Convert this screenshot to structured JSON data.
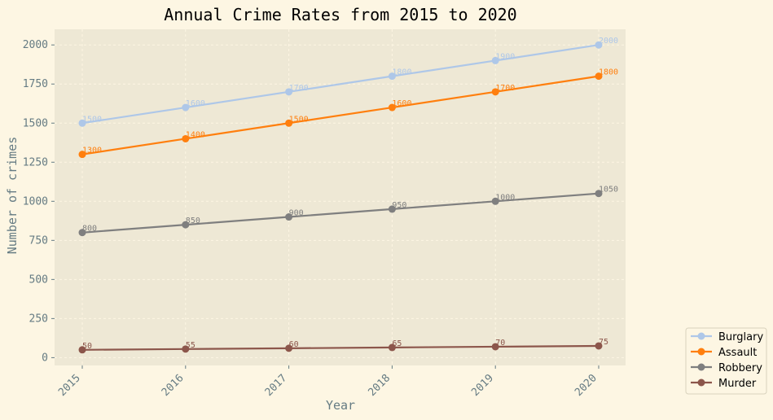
{
  "chart_data": {
    "type": "line",
    "title": "Annual Crime Rates from 2015 to 2020",
    "xlabel": "Year",
    "ylabel": "Number of crimes",
    "categories": [
      "2015",
      "2016",
      "2017",
      "2018",
      "2019",
      "2020"
    ],
    "x": [
      2015,
      2016,
      2017,
      2018,
      2019,
      2020
    ],
    "ylim": [
      -50,
      2100
    ],
    "yticks": [
      0,
      250,
      500,
      750,
      1000,
      1250,
      1500,
      1750,
      2000
    ],
    "ytick_labels": [
      "0",
      "250",
      "500",
      "750",
      "1000",
      "1250",
      "1500",
      "1750",
      "2000"
    ],
    "grid": true,
    "legend_position": "bottom-right, outside plot",
    "series": [
      {
        "name": "Burglary",
        "color": "#aec7e8",
        "values": [
          1500,
          1600,
          1700,
          1800,
          1900,
          2000
        ],
        "labels": [
          "1500",
          "1600",
          "1700",
          "1800",
          "1900",
          "2000"
        ]
      },
      {
        "name": "Assault",
        "color": "#ff7f0e",
        "values": [
          1300,
          1400,
          1500,
          1600,
          1700,
          1800
        ],
        "labels": [
          "1300",
          "1400",
          "1500",
          "1600",
          "1700",
          "1800"
        ]
      },
      {
        "name": "Robbery",
        "color": "#7f7f7f",
        "values": [
          800,
          850,
          900,
          950,
          1000,
          1050
        ],
        "labels": [
          "800",
          "850",
          "900",
          "950",
          "1000",
          "1050"
        ]
      },
      {
        "name": "Murder",
        "color": "#8c564b",
        "values": [
          50,
          55,
          60,
          65,
          70,
          75
        ],
        "labels": [
          "50",
          "55",
          "60",
          "65",
          "70",
          "75"
        ]
      }
    ],
    "colors": {
      "page_background": "#fdf6e3",
      "plot_background": "#eee8d5",
      "text": "#657b83",
      "grid": "#fdf6e3"
    }
  }
}
